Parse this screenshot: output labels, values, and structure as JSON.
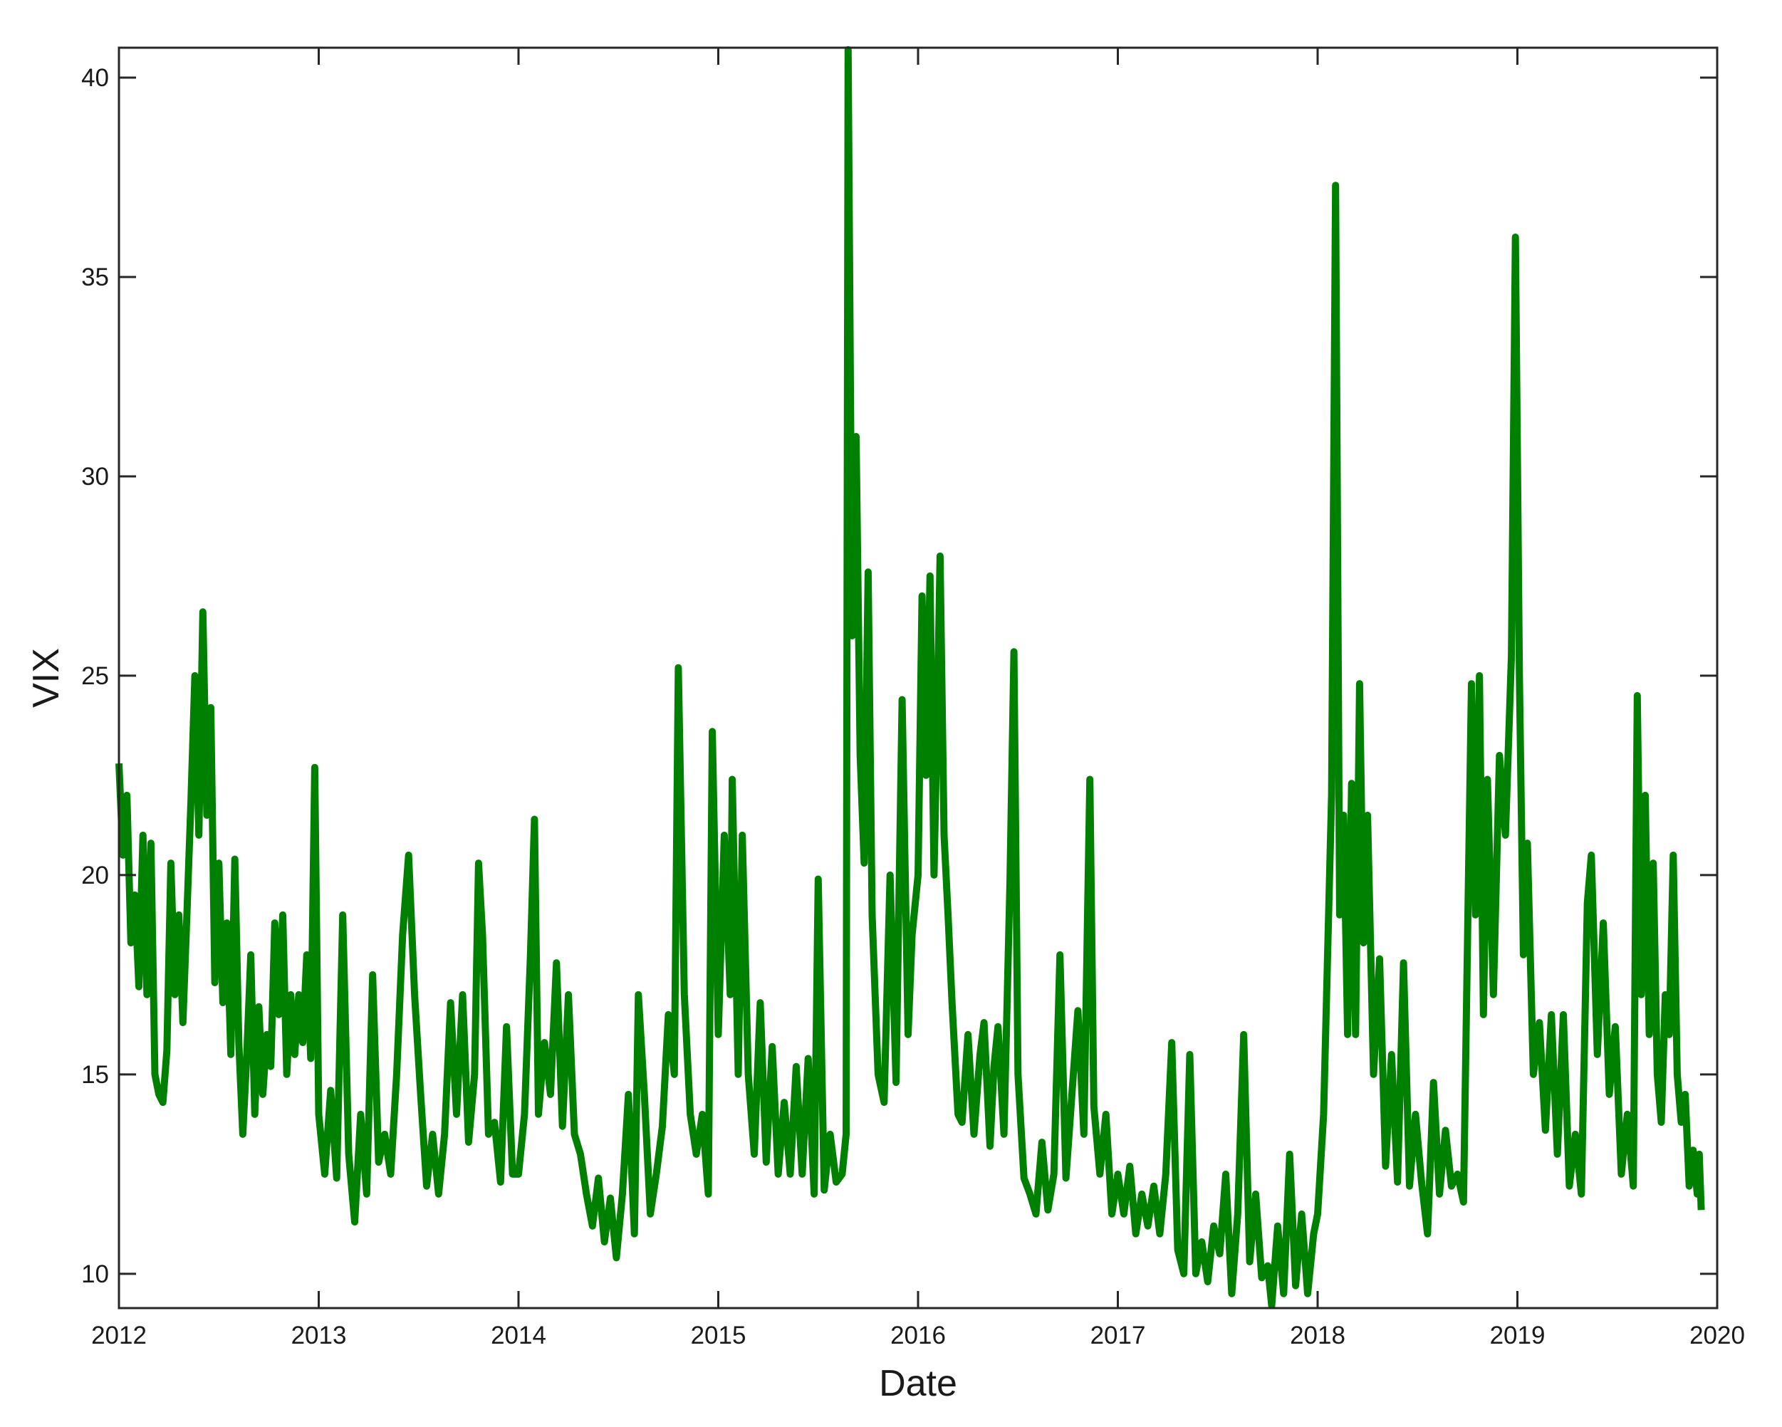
{
  "chart_data": {
    "type": "line",
    "x_label": "Date",
    "y_label": "VIX",
    "xlim": [
      2012,
      2020
    ],
    "xticks": [
      2012,
      2013,
      2014,
      2015,
      2016,
      2017,
      2018,
      2019,
      2020
    ],
    "ylim": [
      9.14,
      40.75
    ],
    "yticks": [
      10,
      15,
      20,
      25,
      30,
      35,
      40
    ],
    "grid": false,
    "series": [
      {
        "name": "VIX",
        "color": "#008000",
        "x": [
          2012.0,
          2012.02,
          2012.04,
          2012.06,
          2012.08,
          2012.1,
          2012.12,
          2012.14,
          2012.16,
          2012.18,
          2012.2,
          2012.22,
          2012.24,
          2012.26,
          2012.28,
          2012.3,
          2012.32,
          2012.34,
          2012.36,
          2012.38,
          2012.4,
          2012.42,
          2012.44,
          2012.46,
          2012.48,
          2012.5,
          2012.52,
          2012.54,
          2012.56,
          2012.58,
          2012.6,
          2012.62,
          2012.64,
          2012.66,
          2012.68,
          2012.7,
          2012.72,
          2012.74,
          2012.76,
          2012.78,
          2012.8,
          2012.82,
          2012.84,
          2012.86,
          2012.88,
          2012.9,
          2012.92,
          2012.94,
          2012.96,
          2012.98,
          2013.0,
          2013.03,
          2013.06,
          2013.09,
          2013.12,
          2013.15,
          2013.18,
          2013.21,
          2013.24,
          2013.27,
          2013.3,
          2013.33,
          2013.36,
          2013.39,
          2013.42,
          2013.45,
          2013.48,
          2013.51,
          2013.54,
          2013.57,
          2013.6,
          2013.63,
          2013.66,
          2013.69,
          2013.72,
          2013.75,
          2013.78,
          2013.8,
          2013.82,
          2013.85,
          2013.88,
          2013.91,
          2013.94,
          2013.97,
          2014.0,
          2014.03,
          2014.06,
          2014.08,
          2014.1,
          2014.13,
          2014.16,
          2014.19,
          2014.22,
          2014.25,
          2014.28,
          2014.31,
          2014.34,
          2014.37,
          2014.4,
          2014.43,
          2014.46,
          2014.49,
          2014.52,
          2014.55,
          2014.58,
          2014.6,
          2014.63,
          2014.66,
          2014.69,
          2014.72,
          2014.75,
          2014.78,
          2014.8,
          2014.83,
          2014.86,
          2014.89,
          2014.92,
          2014.95,
          2014.97,
          2015.0,
          2015.03,
          2015.06,
          2015.07,
          2015.1,
          2015.12,
          2015.15,
          2015.18,
          2015.21,
          2015.24,
          2015.27,
          2015.3,
          2015.33,
          2015.36,
          2015.39,
          2015.42,
          2015.45,
          2015.48,
          2015.5,
          2015.53,
          2015.56,
          2015.59,
          2015.62,
          2015.64,
          2015.645,
          2015.65,
          2015.67,
          2015.69,
          2015.71,
          2015.73,
          2015.75,
          2015.77,
          2015.8,
          2015.83,
          2015.86,
          2015.89,
          2015.92,
          2015.95,
          2015.97,
          2016.0,
          2016.02,
          2016.04,
          2016.06,
          2016.08,
          2016.1,
          2016.11,
          2016.13,
          2016.15,
          2016.17,
          2016.2,
          2016.22,
          2016.25,
          2016.28,
          2016.31,
          2016.33,
          2016.36,
          2016.38,
          2016.4,
          2016.43,
          2016.46,
          2016.48,
          2016.5,
          2016.53,
          2016.56,
          2016.59,
          2016.62,
          2016.65,
          2016.68,
          2016.71,
          2016.74,
          2016.77,
          2016.8,
          2016.83,
          2016.86,
          2016.88,
          2016.91,
          2016.94,
          2016.97,
          2017.0,
          2017.03,
          2017.06,
          2017.09,
          2017.12,
          2017.15,
          2017.18,
          2017.21,
          2017.24,
          2017.27,
          2017.3,
          2017.33,
          2017.36,
          2017.39,
          2017.42,
          2017.45,
          2017.48,
          2017.51,
          2017.54,
          2017.57,
          2017.6,
          2017.63,
          2017.66,
          2017.69,
          2017.72,
          2017.75,
          2017.77,
          2017.8,
          2017.83,
          2017.86,
          2017.89,
          2017.92,
          2017.95,
          2017.98,
          2018.0,
          2018.03,
          2018.07,
          2018.09,
          2018.11,
          2018.13,
          2018.15,
          2018.17,
          2018.19,
          2018.21,
          2018.23,
          2018.25,
          2018.28,
          2018.31,
          2018.34,
          2018.37,
          2018.4,
          2018.43,
          2018.46,
          2018.49,
          2018.52,
          2018.55,
          2018.58,
          2018.61,
          2018.64,
          2018.67,
          2018.7,
          2018.73,
          2018.77,
          2018.79,
          2018.81,
          2018.83,
          2018.85,
          2018.88,
          2018.91,
          2018.94,
          2018.97,
          2018.99,
          2019.01,
          2019.03,
          2019.05,
          2019.08,
          2019.11,
          2019.14,
          2019.17,
          2019.2,
          2019.23,
          2019.26,
          2019.29,
          2019.32,
          2019.35,
          2019.37,
          2019.4,
          2019.43,
          2019.46,
          2019.49,
          2019.52,
          2019.55,
          2019.58,
          2019.6,
          2019.62,
          2019.64,
          2019.66,
          2019.68,
          2019.7,
          2019.72,
          2019.74,
          2019.76,
          2019.78,
          2019.8,
          2019.82,
          2019.84,
          2019.86,
          2019.88,
          2019.9,
          2019.91,
          2019.92
        ],
        "values": [
          22.8,
          20.5,
          22,
          18.3,
          19.5,
          17.2,
          21,
          17,
          20.8,
          15,
          14.5,
          14.3,
          15.6,
          20.3,
          17,
          19,
          16.3,
          19,
          21.8,
          25,
          21,
          26.6,
          21.5,
          24.2,
          17.3,
          20.3,
          16.8,
          18.8,
          15.5,
          20.4,
          15.8,
          13.5,
          15.5,
          18,
          14,
          16.7,
          14.5,
          16,
          15.2,
          18.8,
          16.5,
          19,
          15,
          17,
          15.5,
          17,
          15.8,
          18,
          15.4,
          22.7,
          14,
          12.5,
          14.6,
          12.4,
          19,
          13,
          11.3,
          14,
          12,
          17.5,
          12.8,
          13.5,
          12.5,
          15,
          18.5,
          20.5,
          17,
          14.5,
          12.2,
          13.5,
          12,
          13.5,
          16.8,
          14,
          17,
          13.3,
          15,
          20.3,
          18.5,
          13.5,
          13.8,
          12.3,
          16.2,
          12.5,
          12.5,
          14,
          18,
          21.4,
          14,
          15.8,
          14.5,
          17.8,
          13.7,
          17,
          13.5,
          13,
          12,
          11.2,
          12.4,
          10.8,
          11.9,
          10.4,
          12,
          14.5,
          11,
          17,
          14.5,
          11.5,
          12.5,
          13.7,
          16.5,
          15,
          25.2,
          17,
          14,
          13,
          14,
          12,
          23.6,
          16,
          21,
          17,
          22.4,
          15,
          21,
          15,
          13,
          16.8,
          12.8,
          15.7,
          12.5,
          14.3,
          12.5,
          15.2,
          12.5,
          15.4,
          12,
          19.9,
          12.1,
          13.5,
          12.3,
          12.5,
          13.5,
          28,
          40.7,
          26,
          31,
          23,
          20.3,
          27.6,
          19,
          15,
          14.3,
          20,
          14.8,
          24.4,
          16,
          18.5,
          20,
          27,
          22.5,
          27.5,
          20,
          25,
          28,
          21,
          19,
          16.8,
          14,
          13.8,
          16,
          13.5,
          15.5,
          16.3,
          13.2,
          15.2,
          16.2,
          13.5,
          19.8,
          25.6,
          15,
          12.4,
          12,
          11.5,
          13.3,
          11.6,
          12.5,
          18,
          12.4,
          14.5,
          16.6,
          13.5,
          22.4,
          14.2,
          12.5,
          14,
          11.5,
          12.5,
          11.5,
          12.7,
          11,
          12,
          11.2,
          12.2,
          11,
          12.5,
          15.8,
          10.6,
          10,
          15.5,
          10,
          10.8,
          9.8,
          11.2,
          10.5,
          12.5,
          9.5,
          11.5,
          16,
          10.3,
          12,
          9.9,
          10.2,
          9.2,
          11.2,
          9.5,
          13,
          9.7,
          11.5,
          9.5,
          11,
          11.5,
          14,
          22,
          37.3,
          19,
          21.5,
          16,
          22.3,
          16,
          24.8,
          18.3,
          21.5,
          15,
          17.9,
          12.7,
          15.5,
          12.3,
          17.8,
          12.2,
          14,
          12.3,
          11,
          14.8,
          12,
          13.6,
          12.2,
          12.5,
          11.8,
          24.8,
          19,
          25,
          16.5,
          22.4,
          17,
          23,
          21,
          25.5,
          36,
          25,
          18,
          20.8,
          15,
          16.3,
          13.6,
          16.5,
          13,
          16.5,
          12.2,
          13.5,
          12,
          19.3,
          20.5,
          15.5,
          18.8,
          14.5,
          16.2,
          12.5,
          14,
          12.2,
          24.5,
          17,
          22,
          16,
          20.3,
          15,
          13.8,
          17,
          16,
          20.5,
          15,
          13.8,
          14.5,
          12.2,
          13.1,
          12,
          13,
          11.6
        ]
      }
    ]
  }
}
